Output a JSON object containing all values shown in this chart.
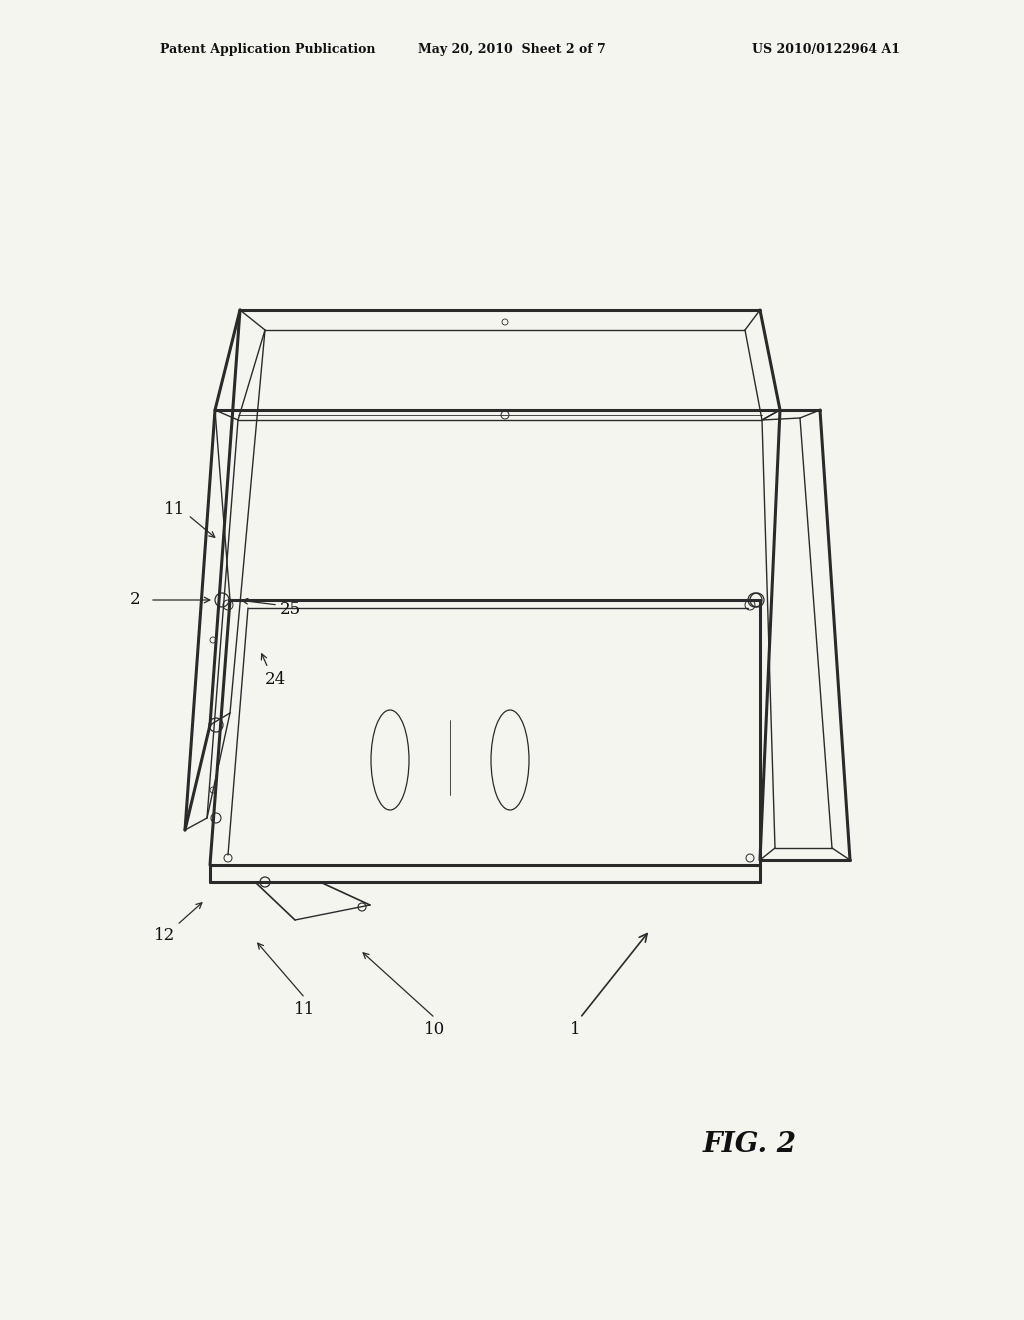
{
  "background_color": "#f5f5f0",
  "header_left": "Patent Application Publication",
  "header_mid": "May 20, 2010  Sheet 2 of 7",
  "header_right": "US 2010/0122964 A1",
  "fig_label": "FIG. 2",
  "line_color": "#2a2a2a",
  "lw_outer": 2.2,
  "lw_inner": 1.0,
  "lw_thin": 0.6
}
